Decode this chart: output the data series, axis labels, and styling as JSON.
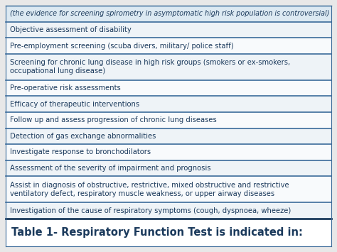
{
  "title": "Table 1- Respiratory Function Test is indicated in:",
  "title_color": "#1b3a5c",
  "title_fontsize": 10.5,
  "rows": [
    "Investigation of the cause of respiratory symptoms (cough, dyspnoea, wheeze)",
    "Assist in diagnosis of obstructive, restrictive, mixed obstructive and restrictive\nventilatory defect, respiratory muscle weakness, or upper airway diseases",
    "Assessment of the severity of impairment and prognosis",
    "Investigate response to bronchodilators",
    "Detection of gas exchange abnormalities",
    "Follow up and assess progression of chronic lung diseases",
    "Efficacy of therapeutic interventions",
    "Pre-operative risk assessments",
    "Screening for chronic lung disease in high risk groups (smokers or ex-smokers,\noccupational lung disease)",
    "Pre-employment screening (scuba divers, military/ police staff)",
    "Objective assessment of disability",
    "(the evidence for screening spirometry in asymptomatic high risk population is controversial)"
  ],
  "row_colors": [
    "#eef3f7",
    "#f8fafc",
    "#eef3f7",
    "#f8fafc",
    "#eef3f7",
    "#f8fafc",
    "#eef3f7",
    "#f8fafc",
    "#eef3f7",
    "#f8fafc",
    "#eef3f7",
    "#dce9f2"
  ],
  "text_color": "#1b3a5c",
  "divider_color": "#3a6b9a",
  "title_bg_color": "#ffffff",
  "bg_color": "#e8e8e8",
  "font_size": 7.2,
  "title_divider_color": "#1b3a5c"
}
